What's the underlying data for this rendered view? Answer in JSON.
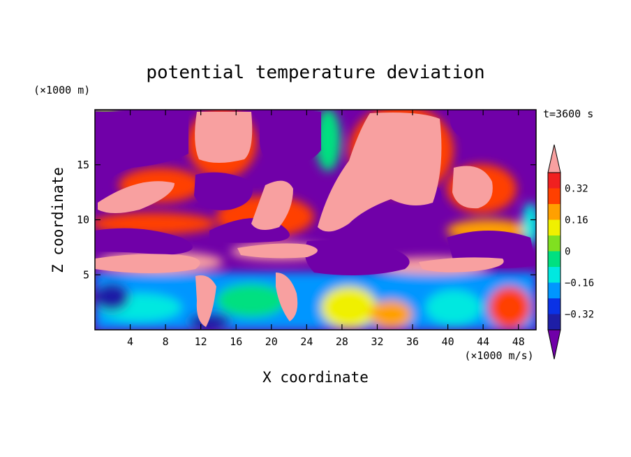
{
  "chart_data": {
    "type": "heatmap",
    "title": "potential temperature deviation",
    "xlabel": "X coordinate",
    "ylabel": "Z coordinate",
    "x_unit": "(×1000 m/s)",
    "y_unit": "(×1000 m)",
    "time_label": "t=3600 s",
    "xlim": [
      0,
      50
    ],
    "ylim": [
      0,
      20
    ],
    "x_ticks": [
      4,
      8,
      12,
      16,
      20,
      24,
      28,
      32,
      36,
      40,
      44,
      48
    ],
    "y_ticks": [
      5,
      10,
      15
    ],
    "colorbar": {
      "levels": [
        -0.4,
        -0.32,
        -0.24,
        -0.16,
        -0.08,
        0,
        0.08,
        0.16,
        0.24,
        0.32,
        0.4
      ],
      "tick_values": [
        "0.32",
        "0.16",
        "0",
        "−0.16",
        "−0.32"
      ],
      "colors": [
        "#7000a8",
        "#1e1ea6",
        "#0a32e6",
        "#0096ff",
        "#00e8e0",
        "#00e080",
        "#80e020",
        "#f0f000",
        "#ffa000",
        "#ff4000",
        "#f02020",
        "#f8a0a0"
      ],
      "extend": "both"
    },
    "features": [
      {
        "name": "warm cell",
        "x": 14.5,
        "z": 17.0,
        "value": 0.45
      },
      {
        "name": "warm cell",
        "x": 33.5,
        "z": 16.0,
        "value": 0.45
      },
      {
        "name": "warm cell",
        "x": 43.0,
        "z": 13.0,
        "value": 0.45
      },
      {
        "name": "warm band",
        "x": 15.0,
        "z": 7.5,
        "value": 0.45
      },
      {
        "name": "cold cell",
        "x": 5.0,
        "z": 15.5,
        "value": -0.45
      },
      {
        "name": "cold cell",
        "x": 15.0,
        "z": 12.0,
        "value": -0.45
      },
      {
        "name": "cold cell",
        "x": 23.0,
        "z": 17.5,
        "value": -0.45
      },
      {
        "name": "cold cell",
        "x": 45.0,
        "z": 15.5,
        "value": -0.45
      },
      {
        "name": "cold band",
        "x": 30.0,
        "z": 6.5,
        "value": -0.45
      }
    ]
  }
}
